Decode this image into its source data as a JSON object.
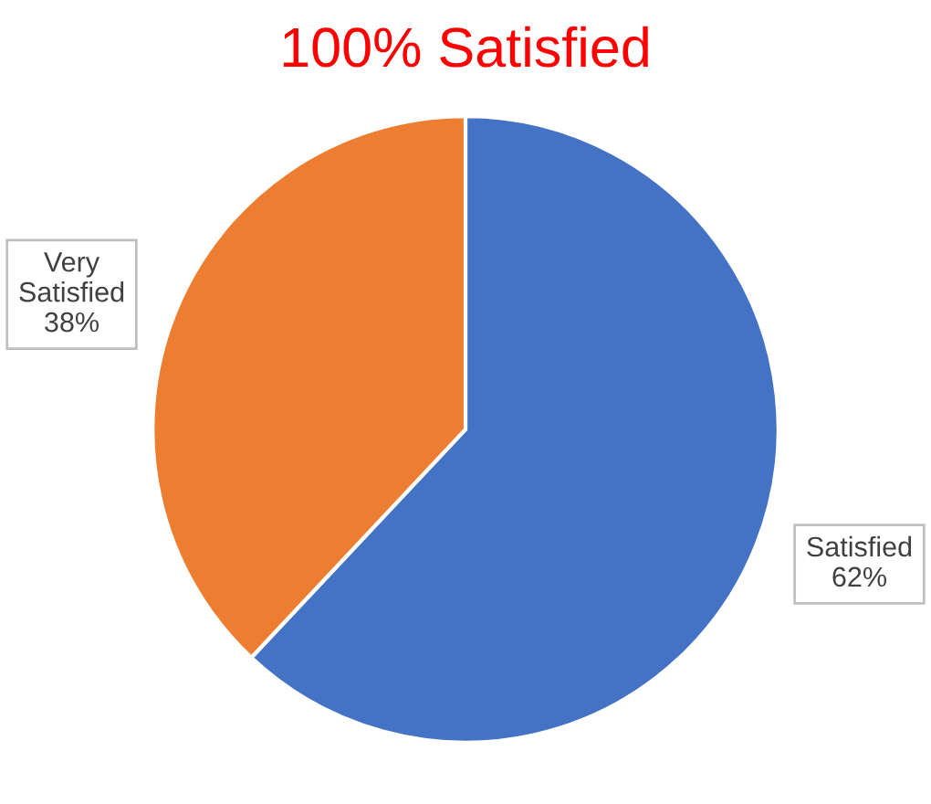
{
  "chart_data": {
    "type": "pie",
    "title": "100% Satisfied",
    "categories": [
      "Satisfied",
      "Very Satisfied"
    ],
    "values": [
      62,
      38
    ],
    "value_labels": [
      "62%",
      "38%"
    ],
    "colors": [
      "#4472c4",
      "#ed7d31"
    ],
    "legend": false
  }
}
